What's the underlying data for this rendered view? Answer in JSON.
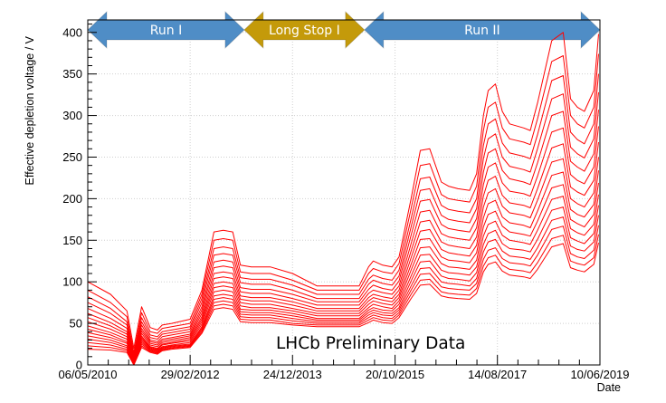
{
  "chart_data": {
    "type": "line",
    "title": "",
    "xlabel": "Date",
    "ylabel": "Effective depletion voltage / V",
    "ylim": [
      0,
      415
    ],
    "yticks": [
      0,
      50,
      100,
      150,
      200,
      250,
      300,
      350,
      400
    ],
    "xlim": [
      "2010-05-06",
      "2019-06-10"
    ],
    "xticks": [
      "06/05/2010",
      "29/02/2012",
      "24/12/2013",
      "20/10/2015",
      "14/08/2017",
      "10/06/2019"
    ],
    "grid": true,
    "line_color": "#ff0000",
    "annotation": "LHCb Preliminary Data",
    "phases": [
      {
        "label": "Run I",
        "start": "2010-05-06",
        "end": "2013-02-14",
        "color": "#4f8dc6"
      },
      {
        "label": "Long Stop I",
        "start": "2013-02-14",
        "end": "2015-04-05",
        "color": "#c49a0a"
      },
      {
        "label": "Run II",
        "start": "2015-04-05",
        "end": "2019-06-10",
        "color": "#4f8dc6"
      }
    ],
    "x": [
      "2010-05-06",
      "2010-10-01",
      "2011-01-15",
      "2011-03-01",
      "2011-04-20",
      "2011-06-15",
      "2011-08-01",
      "2011-09-01",
      "2011-11-01",
      "2012-02-29",
      "2012-05-15",
      "2012-08-01",
      "2012-10-01",
      "2012-12-01",
      "2013-01-20",
      "2013-04-01",
      "2013-08-01",
      "2013-12-24",
      "2014-06-01",
      "2014-12-01",
      "2015-03-01",
      "2015-05-01",
      "2015-06-01",
      "2015-08-01",
      "2015-10-01",
      "2015-11-15",
      "2016-02-01",
      "2016-04-01",
      "2016-06-01",
      "2016-08-15",
      "2016-10-01",
      "2016-12-01",
      "2017-02-15",
      "2017-04-01",
      "2017-05-15",
      "2017-06-15",
      "2017-08-01",
      "2017-09-15",
      "2017-11-01",
      "2018-02-01",
      "2018-03-15",
      "2018-05-01",
      "2018-08-01",
      "2018-10-15",
      "2018-12-01",
      "2019-01-15",
      "2019-03-01",
      "2019-05-01",
      "2019-06-01"
    ],
    "series": [
      {
        "values": [
          100,
          85,
          65,
          20,
          70,
          45,
          42,
          48,
          50,
          55,
          90,
          160,
          162,
          160,
          120,
          118,
          118,
          110,
          95,
          95,
          95,
          118,
          125,
          120,
          118,
          130,
          200,
          258,
          260,
          220,
          215,
          212,
          210,
          230,
          300,
          330,
          338,
          305,
          290,
          285,
          282,
          315,
          390,
          400,
          320,
          310,
          305,
          330,
          398
        ]
      },
      {
        "values": [
          90,
          75,
          58,
          15,
          63,
          40,
          38,
          44,
          46,
          50,
          85,
          150,
          152,
          150,
          112,
          110,
          110,
          102,
          90,
          90,
          90,
          110,
          116,
          112,
          110,
          122,
          188,
          240,
          242,
          205,
          200,
          198,
          196,
          215,
          282,
          310,
          316,
          285,
          272,
          268,
          265,
          296,
          365,
          372,
          300,
          290,
          285,
          310,
          374
        ]
      },
      {
        "values": [
          82,
          68,
          52,
          12,
          57,
          36,
          34,
          40,
          42,
          46,
          80,
          140,
          142,
          140,
          105,
          103,
          103,
          96,
          85,
          85,
          85,
          103,
          108,
          104,
          102,
          114,
          176,
          224,
          226,
          192,
          187,
          185,
          183,
          200,
          264,
          290,
          296,
          267,
          255,
          251,
          248,
          277,
          342,
          348,
          280,
          271,
          266,
          290,
          350
        ]
      },
      {
        "values": [
          75,
          62,
          48,
          10,
          52,
          33,
          31,
          37,
          39,
          43,
          75,
          132,
          134,
          132,
          99,
          97,
          97,
          90,
          80,
          80,
          80,
          97,
          102,
          98,
          96,
          107,
          166,
          210,
          212,
          180,
          175,
          173,
          171,
          188,
          248,
          272,
          278,
          250,
          239,
          235,
          232,
          260,
          320,
          326,
          262,
          254,
          249,
          272,
          328
        ]
      },
      {
        "values": [
          68,
          56,
          44,
          8,
          48,
          30,
          28,
          34,
          36,
          40,
          70,
          124,
          126,
          124,
          93,
          91,
          91,
          85,
          76,
          76,
          76,
          91,
          96,
          92,
          90,
          101,
          156,
          197,
          199,
          169,
          164,
          162,
          160,
          176,
          232,
          255,
          260,
          234,
          224,
          220,
          217,
          243,
          300,
          305,
          245,
          238,
          233,
          254,
          307
        ]
      },
      {
        "values": [
          62,
          51,
          40,
          6,
          44,
          28,
          26,
          31,
          33,
          37,
          66,
          117,
          119,
          117,
          88,
          86,
          86,
          80,
          72,
          72,
          72,
          86,
          90,
          87,
          85,
          95,
          146,
          184,
          186,
          158,
          154,
          152,
          150,
          165,
          217,
          238,
          243,
          219,
          209,
          206,
          203,
          227,
          280,
          285,
          229,
          222,
          218,
          238,
          287
        ]
      },
      {
        "values": [
          57,
          47,
          37,
          5,
          41,
          26,
          24,
          29,
          31,
          35,
          62,
          110,
          112,
          110,
          83,
          81,
          81,
          76,
          68,
          68,
          68,
          81,
          85,
          82,
          80,
          90,
          137,
          172,
          174,
          148,
          144,
          142,
          140,
          154,
          203,
          222,
          227,
          204,
          195,
          192,
          189,
          212,
          261,
          266,
          214,
          208,
          204,
          222,
          268
        ]
      },
      {
        "values": [
          52,
          43,
          34,
          4,
          38,
          24,
          22,
          27,
          29,
          33,
          58,
          104,
          106,
          104,
          79,
          77,
          77,
          72,
          65,
          65,
          65,
          77,
          81,
          78,
          76,
          85,
          129,
          161,
          163,
          139,
          135,
          133,
          131,
          144,
          190,
          207,
          212,
          191,
          183,
          180,
          177,
          198,
          244,
          248,
          200,
          194,
          190,
          207,
          250
        ]
      },
      {
        "values": [
          47,
          39,
          31,
          3,
          35,
          22,
          20,
          25,
          27,
          31,
          55,
          98,
          100,
          98,
          75,
          73,
          73,
          68,
          62,
          62,
          62,
          73,
          77,
          74,
          72,
          81,
          121,
          151,
          152,
          130,
          126,
          125,
          123,
          135,
          177,
          194,
          198,
          178,
          171,
          168,
          165,
          185,
          228,
          232,
          187,
          181,
          178,
          193,
          234
        ]
      },
      {
        "values": [
          43,
          36,
          28,
          2,
          33,
          21,
          19,
          24,
          26,
          29,
          52,
          93,
          95,
          93,
          71,
          69,
          69,
          65,
          59,
          59,
          59,
          69,
          73,
          70,
          68,
          77,
          114,
          141,
          142,
          122,
          118,
          117,
          115,
          126,
          166,
          181,
          185,
          167,
          160,
          157,
          155,
          173,
          213,
          217,
          175,
          170,
          166,
          181,
          219
        ]
      },
      {
        "values": [
          39,
          33,
          26,
          2,
          31,
          20,
          18,
          22,
          24,
          27,
          49,
          88,
          90,
          88,
          67,
          66,
          66,
          62,
          56,
          56,
          56,
          66,
          69,
          66,
          65,
          73,
          107,
          132,
          133,
          114,
          111,
          110,
          108,
          118,
          155,
          169,
          173,
          156,
          150,
          147,
          145,
          162,
          199,
          203,
          164,
          159,
          156,
          169,
          205
        ]
      },
      {
        "values": [
          35,
          30,
          23,
          1,
          29,
          19,
          17,
          21,
          23,
          25,
          46,
          83,
          85,
          83,
          64,
          63,
          63,
          59,
          54,
          54,
          54,
          63,
          66,
          63,
          62,
          69,
          101,
          124,
          125,
          107,
          104,
          103,
          101,
          111,
          145,
          158,
          162,
          146,
          140,
          138,
          136,
          151,
          186,
          190,
          153,
          149,
          146,
          158,
          192
        ]
      },
      {
        "values": [
          31,
          27,
          21,
          1,
          27,
          18,
          16,
          20,
          22,
          24,
          44,
          79,
          81,
          79,
          61,
          60,
          60,
          56,
          52,
          52,
          52,
          60,
          63,
          60,
          59,
          66,
          95,
          116,
          117,
          100,
          98,
          97,
          95,
          104,
          136,
          148,
          151,
          137,
          131,
          129,
          127,
          141,
          174,
          178,
          143,
          139,
          137,
          148,
          180
        ]
      },
      {
        "values": [
          27,
          24,
          19,
          0,
          25,
          17,
          15,
          19,
          21,
          23,
          42,
          75,
          77,
          75,
          58,
          57,
          57,
          53,
          50,
          50,
          50,
          57,
          60,
          57,
          56,
          63,
          90,
          109,
          110,
          94,
          92,
          91,
          90,
          98,
          127,
          138,
          141,
          128,
          123,
          121,
          119,
          132,
          163,
          167,
          134,
          130,
          128,
          138,
          168
        ]
      },
      {
        "values": [
          23,
          21,
          17,
          0,
          23,
          16,
          14,
          18,
          20,
          22,
          40,
          71,
          73,
          71,
          55,
          54,
          54,
          50,
          48,
          48,
          48,
          54,
          57,
          54,
          53,
          60,
          85,
          102,
          103,
          88,
          86,
          85,
          84,
          92,
          119,
          129,
          132,
          120,
          115,
          113,
          111,
          123,
          152,
          156,
          125,
          122,
          120,
          129,
          157
        ]
      },
      {
        "values": [
          19,
          18,
          15,
          0,
          21,
          15,
          13,
          17,
          19,
          21,
          38,
          67,
          69,
          67,
          52,
          51,
          51,
          48,
          46,
          46,
          46,
          51,
          54,
          51,
          50,
          57,
          80,
          96,
          97,
          83,
          81,
          80,
          79,
          86,
          112,
          121,
          124,
          113,
          108,
          106,
          104,
          115,
          142,
          146,
          117,
          114,
          112,
          121,
          147
        ]
      }
    ]
  }
}
